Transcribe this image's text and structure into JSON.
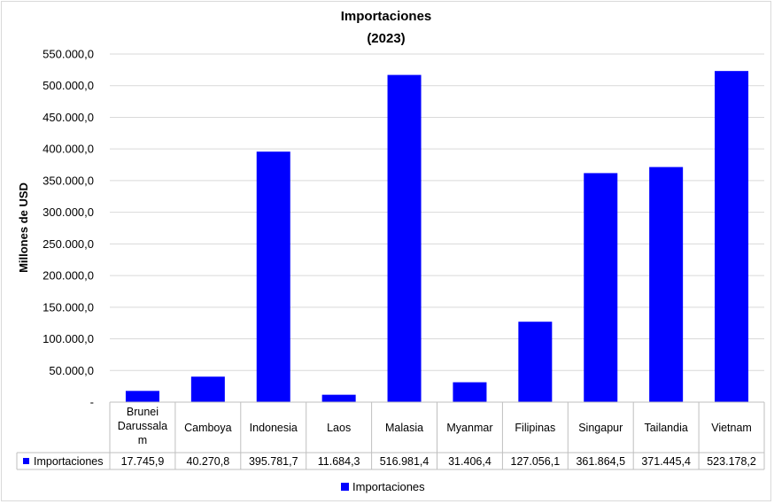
{
  "chart_data": {
    "type": "bar",
    "title": "Importaciones",
    "subtitle": "(2023)",
    "ylabel": "Millones de USD",
    "xlabel": "",
    "ylim": [
      0,
      550000
    ],
    "ytick_step": 50000,
    "ytick_labels": [
      "-",
      "50.000,0",
      "100.000,0",
      "150.000,0",
      "200.000,0",
      "250.000,0",
      "300.000,0",
      "350.000,0",
      "400.000,0",
      "450.000,0",
      "500.000,0",
      "550.000,0"
    ],
    "grid": true,
    "bar_color": "#0000FF",
    "category_lines": [
      [
        "Brunei",
        "Darussala",
        "m"
      ],
      [
        "Camboya"
      ],
      [
        "Indonesia"
      ],
      [
        "Laos"
      ],
      [
        "Malasia"
      ],
      [
        "Myanmar"
      ],
      [
        "Filipinas"
      ],
      [
        "Singapur"
      ],
      [
        "Tailandia"
      ],
      [
        "Vietnam"
      ]
    ],
    "categories": [
      "Brunei Darussalam",
      "Camboya",
      "Indonesia",
      "Laos",
      "Malasia",
      "Myanmar",
      "Filipinas",
      "Singapur",
      "Tailandia",
      "Vietnam"
    ],
    "series": [
      {
        "name": "Importaciones",
        "values": [
          17745.9,
          40270.8,
          395781.7,
          11684.3,
          516981.4,
          31406.4,
          127056.1,
          361864.5,
          371445.4,
          523178.2
        ],
        "value_labels": [
          "17.745,9",
          "40.270,8",
          "395.781,7",
          "11.684,3",
          "516.981,4",
          "31.406,4",
          "127.056,1",
          "361.864,5",
          "371.445,4",
          "523.178,2"
        ]
      }
    ],
    "legend": {
      "position": "bottom",
      "label": "Importaciones"
    },
    "data_table": true
  }
}
